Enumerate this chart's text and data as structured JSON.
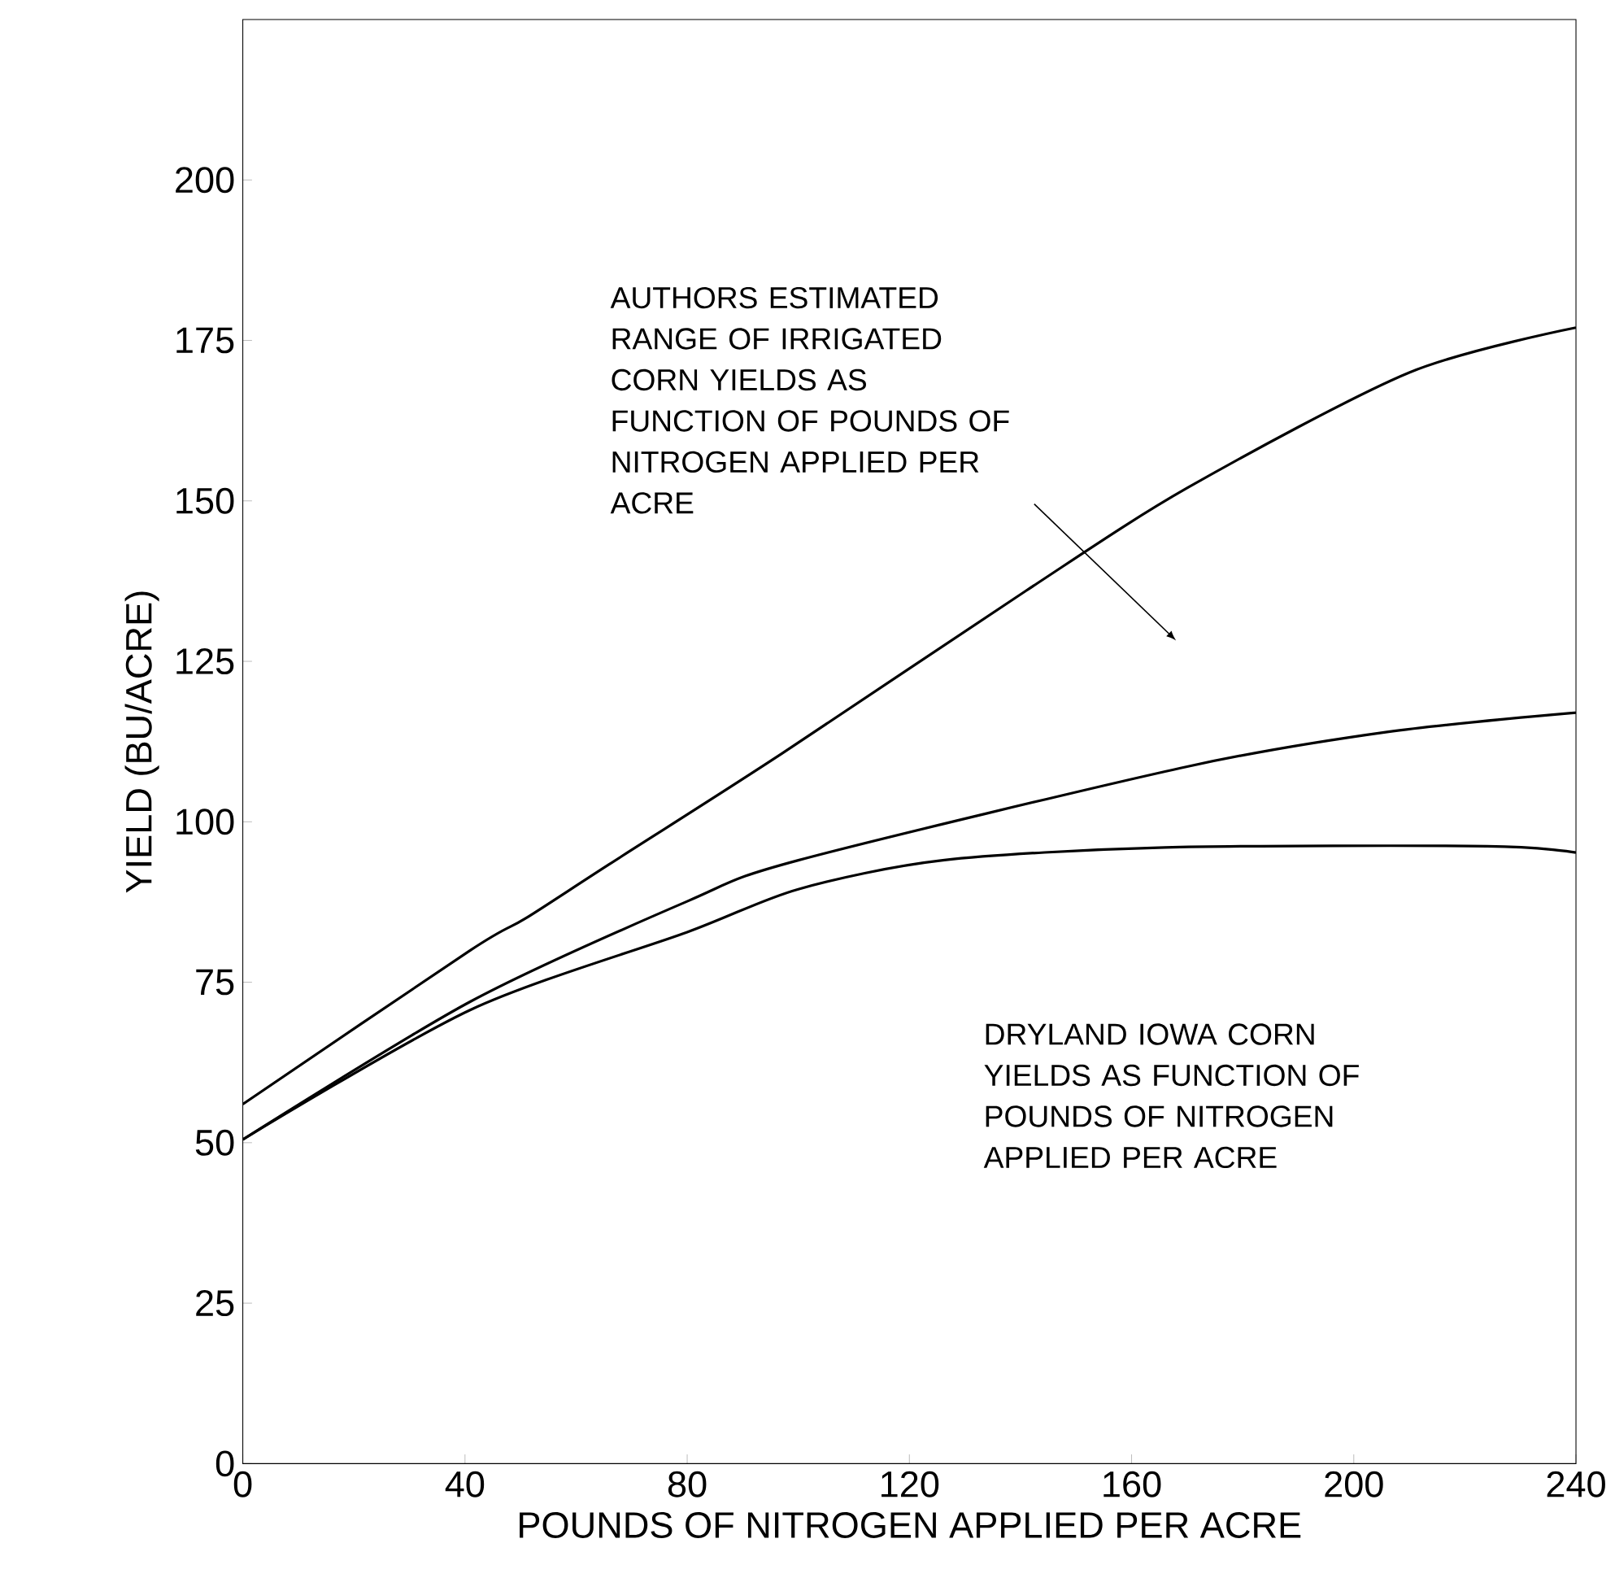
{
  "chart_data": {
    "type": "line",
    "xlabel": "POUNDS OF NITROGEN APPLIED PER ACRE",
    "ylabel": "YIELD (BU/ACRE)",
    "xlim": [
      0,
      240
    ],
    "xticks": [
      0,
      40,
      80,
      120,
      160,
      200,
      240
    ],
    "ylim": [
      0,
      225
    ],
    "yticks": [
      0,
      25,
      50,
      75,
      100,
      125,
      150,
      175,
      200
    ],
    "grid": false,
    "marker": "none",
    "line_style": "solid",
    "series": [
      {
        "color": "#000000",
        "x": [
          0,
          41,
          51,
          66,
          97,
          141,
          170,
          210,
          240
        ],
        "values": [
          56,
          80,
          85,
          93.4,
          110.6,
          136,
          152,
          170,
          177
        ]
      },
      {
        "color": "#000000",
        "x": [
          0,
          41,
          80,
          100,
          170,
          206,
          240
        ],
        "values": [
          50.5,
          72,
          87.6,
          94,
          108.6,
          114,
          117
        ]
      },
      {
        "color": "#000000",
        "x": [
          0,
          41,
          80,
          100,
          126,
          166,
          224,
          240
        ],
        "values": [
          50.5,
          70.7,
          82.8,
          89.5,
          94,
          96,
          96.2,
          95.2
        ]
      }
    ],
    "annotations": [
      "AUTHORS ESTIMATED RANGE OF IRRIGATED CORN YIELDS AS FUNCTION OF POUNDS OF NITROGEN APPLIED PER ACRE",
      "DRYLAND IOWA CORN YIELDS AS FUNCTION OF POUNDS OF NITROGEN APPLIED PER ACRE"
    ]
  }
}
